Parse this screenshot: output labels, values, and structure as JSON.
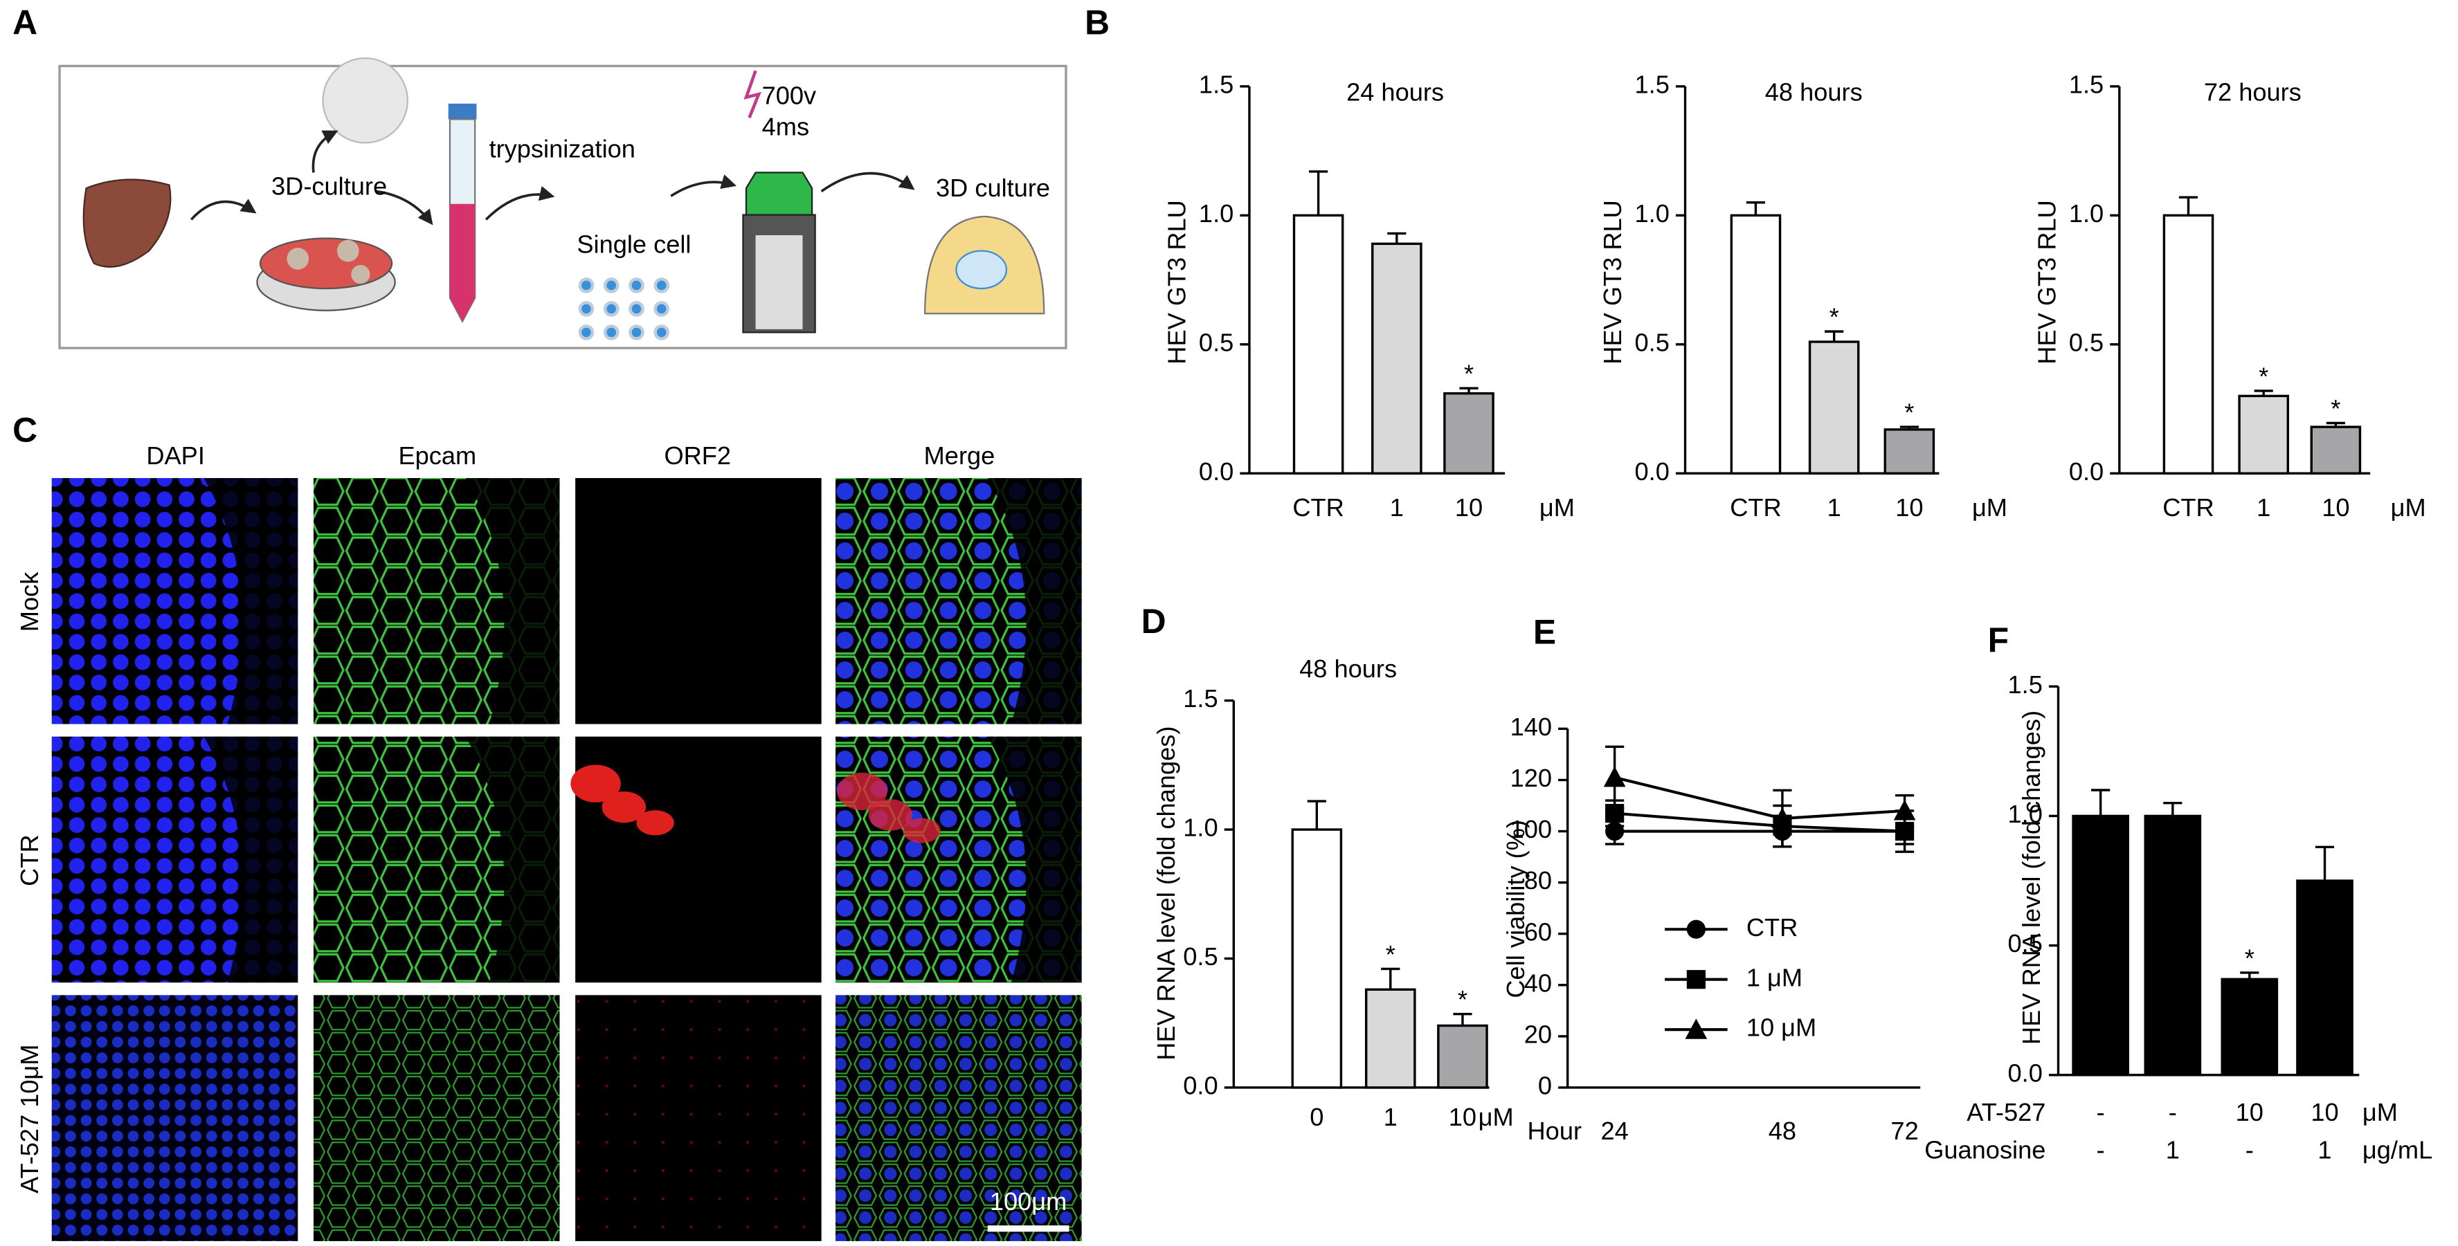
{
  "panel_labels": [
    "A",
    "B",
    "C",
    "D",
    "E",
    "F"
  ],
  "diagram": {
    "steps": [
      "3D-culture",
      "trypsinization",
      "Single cell",
      "700v",
      "4ms",
      "3D culture"
    ]
  },
  "microscopy": {
    "columns": [
      "DAPI",
      "Epcam",
      "ORF2",
      "Merge"
    ],
    "rows": [
      "Mock",
      "CTR",
      "AT-527 10μM"
    ],
    "scale_bar": "100μm"
  },
  "chart_data": [
    {
      "type": "bar",
      "title": "24 hours",
      "ylabel": "HEV GT3 RLU",
      "categories": [
        "CTR",
        "1",
        "10"
      ],
      "unit": "μM",
      "values": [
        1.0,
        0.89,
        0.31
      ],
      "errors": [
        0.17,
        0.04,
        0.02
      ],
      "colors": [
        "#ffffff",
        "#d9d9d9",
        "#a6a6a8"
      ],
      "annotations": [
        null,
        null,
        "*"
      ],
      "ylim": [
        0,
        1.5
      ],
      "yticks": [
        {
          "value": 0,
          "label": "0.0"
        },
        0.5,
        {
          "value": 1,
          "label": "1.0"
        },
        1.5
      ]
    },
    {
      "type": "bar",
      "title": "48 hours",
      "ylabel": "HEV GT3 RLU",
      "categories": [
        "CTR",
        "1",
        "10"
      ],
      "unit": "μM",
      "values": [
        1.0,
        0.51,
        0.17
      ],
      "errors": [
        0.05,
        0.04,
        0.01
      ],
      "colors": [
        "#ffffff",
        "#d9d9d9",
        "#a6a6a8"
      ],
      "annotations": [
        null,
        "*",
        "*"
      ],
      "ylim": [
        0,
        1.5
      ],
      "yticks": [
        {
          "value": 0,
          "label": "0.0"
        },
        0.5,
        {
          "value": 1,
          "label": "1.0"
        },
        1.5
      ]
    },
    {
      "type": "bar",
      "title": "72 hours",
      "ylabel": "HEV GT3 RLU",
      "categories": [
        "CTR",
        "1",
        "10"
      ],
      "unit": "μM",
      "values": [
        1.0,
        0.3,
        0.18
      ],
      "errors": [
        0.07,
        0.02,
        0.015
      ],
      "colors": [
        "#ffffff",
        "#d9d9d9",
        "#a6a6a8"
      ],
      "annotations": [
        null,
        "*",
        "*"
      ],
      "ylim": [
        0,
        1.5
      ],
      "yticks": [
        {
          "value": 0,
          "label": "0.0"
        },
        0.5,
        {
          "value": 1,
          "label": "1.0"
        },
        1.5
      ]
    },
    {
      "type": "bar",
      "title": "48 hours",
      "ylabel": "HEV RNA level (fold changes)",
      "categories": [
        "0",
        "1",
        "10"
      ],
      "unit": "μM",
      "values": [
        1.0,
        0.38,
        0.24
      ],
      "errors": [
        0.11,
        0.08,
        0.045
      ],
      "colors": [
        "#ffffff",
        "#d9d9d9",
        "#a6a6a8"
      ],
      "annotations": [
        null,
        "*",
        "*"
      ],
      "ylim": [
        0,
        1.5
      ],
      "yticks": [
        {
          "value": 0,
          "label": "0.0"
        },
        0.5,
        {
          "value": 1,
          "label": "1.0"
        },
        1.5
      ]
    },
    {
      "type": "line",
      "ylabel": "Cell viability (%)",
      "xlabel": "Hour",
      "categories": [
        "24",
        "48",
        "72"
      ],
      "series": [
        {
          "name": "CTR",
          "marker": "circle",
          "color": "#000000",
          "values": [
            100,
            100,
            100
          ],
          "errors": [
            5,
            6,
            5
          ]
        },
        {
          "name": "1 μM",
          "marker": "square",
          "color": "#000000",
          "values": [
            107,
            102,
            100
          ],
          "errors": [
            5,
            8,
            8
          ]
        },
        {
          "name": "10 μM",
          "marker": "triangle",
          "color": "#000000",
          "values": [
            121,
            105,
            108
          ],
          "errors": [
            12,
            11,
            6
          ]
        }
      ],
      "ylim": [
        0,
        140
      ],
      "yticks": [
        0,
        20,
        40,
        60,
        80,
        100,
        120,
        140
      ]
    },
    {
      "type": "bar",
      "ylabel": "HEV RNA level (fold changes)",
      "categories": [
        null,
        null,
        null,
        null
      ],
      "values": [
        1.0,
        1.0,
        0.37,
        0.75
      ],
      "errors": [
        0.1,
        0.05,
        0.025,
        0.13
      ],
      "color": "#000000",
      "annotations": [
        null,
        null,
        "*",
        null
      ],
      "ylim": [
        0,
        1.5
      ],
      "yticks": [
        {
          "value": 0,
          "label": "0.0"
        },
        0.5,
        {
          "value": 1,
          "label": "1.0"
        },
        1.5
      ],
      "rows": [
        {
          "name": "AT-527",
          "values": [
            "-",
            "-",
            "10",
            "10"
          ],
          "unit": "μM"
        },
        {
          "name": "Guanosine",
          "values": [
            "-",
            "1",
            "-",
            "1"
          ],
          "unit": "μg/mL"
        }
      ]
    }
  ]
}
